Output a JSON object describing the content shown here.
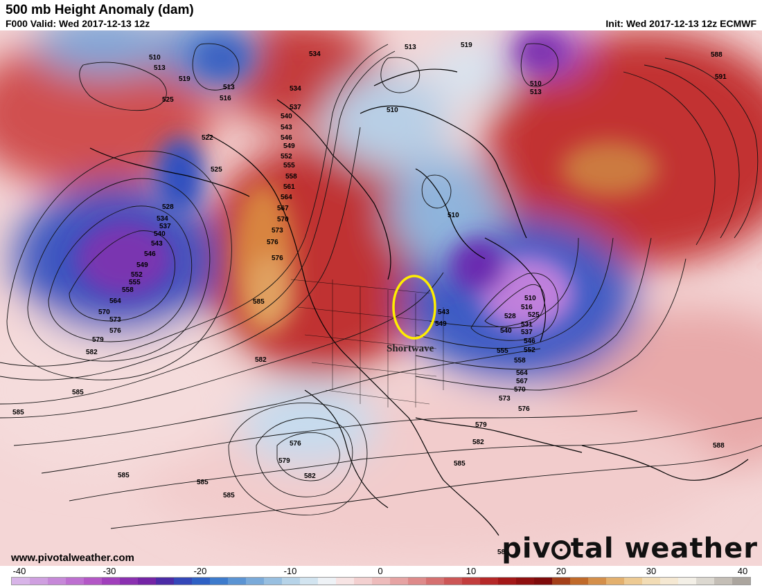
{
  "header": {
    "title": "500 mb Height Anomaly (dam)",
    "valid": "F000 Valid: Wed 2017-12-13 12z",
    "init": "Init: Wed 2017-12-13 12z ECMWF"
  },
  "annotation": {
    "label": "Shortwave",
    "circle_color": "#ffee00"
  },
  "contour_labels": [
    "510",
    "513",
    "516",
    "519",
    "522",
    "525",
    "528",
    "531",
    "534",
    "537",
    "540",
    "543",
    "546",
    "549",
    "552",
    "555",
    "558",
    "561",
    "564",
    "567",
    "570",
    "573",
    "576",
    "579",
    "582",
    "585",
    "588",
    "591"
  ],
  "footer": {
    "site": "www.pivotalweather.com",
    "brand_left": "piv",
    "brand_right": "tal weather"
  },
  "colorbar": {
    "ticks": [
      "-40",
      "-30",
      "-20",
      "-10",
      "0",
      "10",
      "20",
      "30",
      "40"
    ],
    "colors": [
      "#d8b4e8",
      "#cf9fe0",
      "#c688d8",
      "#bd6fd0",
      "#b357c6",
      "#a03fbb",
      "#8a30b0",
      "#7424a5",
      "#4b2ba6",
      "#3447b8",
      "#2e60c4",
      "#3d7bcc",
      "#5b94d3",
      "#7aaad9",
      "#98bfe0",
      "#b6d3e8",
      "#d2e4f0",
      "#eef2f6",
      "#f7e4e4",
      "#f3d0d0",
      "#edbbbb",
      "#e6a3a3",
      "#de8a8a",
      "#d57070",
      "#cc5656",
      "#c23d3d",
      "#b52828",
      "#a31818",
      "#8f1010",
      "#7e0b0b",
      "#a4401a",
      "#c06a2a",
      "#d48f4a",
      "#e3b06e",
      "#edca93",
      "#f2dcb5",
      "#f5e8d2",
      "#f3efe6",
      "#dcd8d0",
      "#c4beb6",
      "#aba59e"
    ]
  }
}
